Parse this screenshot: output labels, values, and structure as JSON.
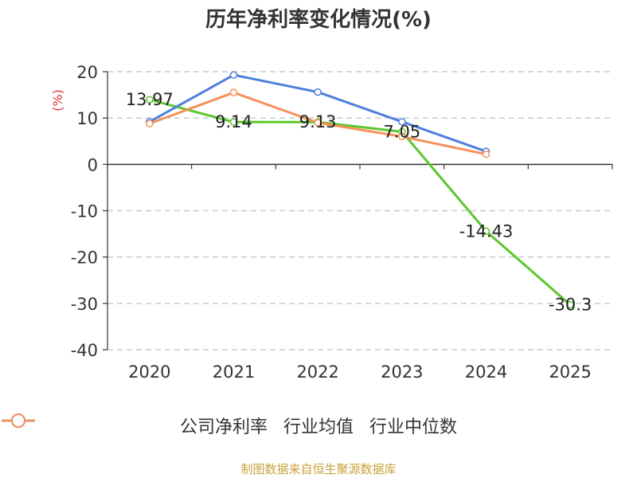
{
  "chart_data": {
    "type": "line",
    "title": "历年净利率变化情况(%)",
    "ylabel": "(%)",
    "xlabel": "",
    "categories": [
      "2020",
      "2021",
      "2022",
      "2023",
      "2024",
      "2025"
    ],
    "ylim": [
      -40,
      20
    ],
    "yticks": [
      20,
      10,
      0,
      -10,
      -20,
      -30,
      -40
    ],
    "grid": true,
    "legend_position": "bottom",
    "series": [
      {
        "name": "公司净利率",
        "color": "#5cc72e",
        "values": [
          13.97,
          9.14,
          9.13,
          7.05,
          -14.43,
          -30.3
        ],
        "labels": [
          "13.97",
          "9.14",
          "9.13",
          "7.05",
          "-14.43",
          "-30.3"
        ]
      },
      {
        "name": "行业均值",
        "color": "#4e7fde",
        "values": [
          9.2,
          19.3,
          15.6,
          9.2,
          2.8,
          null
        ]
      },
      {
        "name": "行业中位数",
        "color": "#f5905a",
        "values": [
          8.8,
          15.5,
          9.0,
          6.0,
          2.2,
          null
        ]
      }
    ]
  },
  "footer": "制图数据来自恒生聚源数据库"
}
